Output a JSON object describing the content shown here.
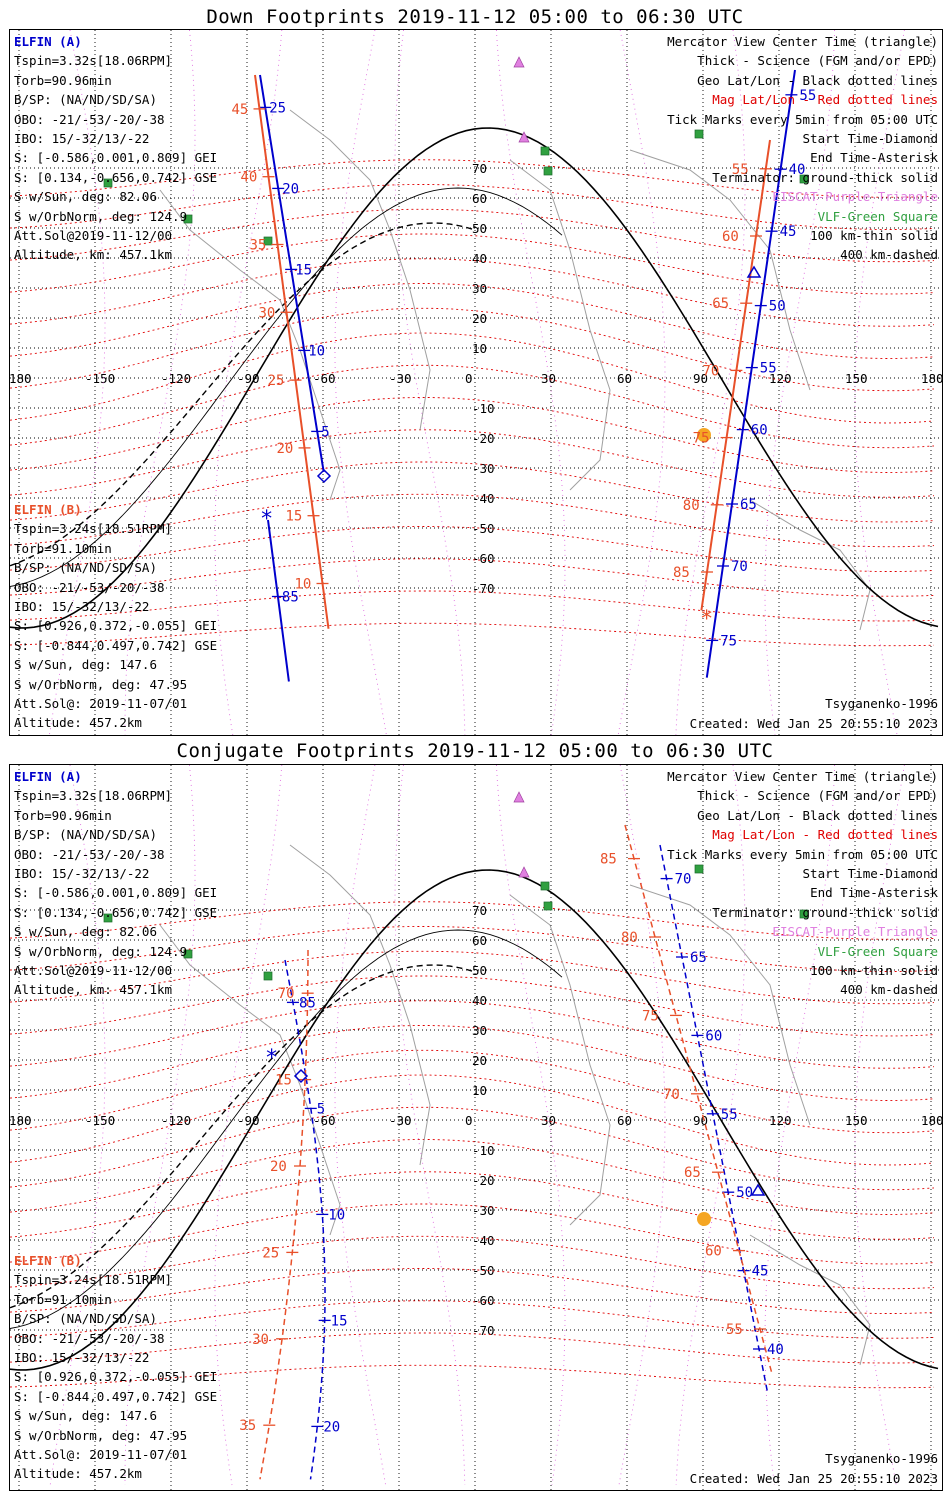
{
  "page": {
    "background": "#ffffff"
  },
  "colors": {
    "elfin_a": "#0000cc",
    "elfin_b": "#e8502a",
    "mag_grid": "#e00000",
    "geo_grid": "#000000",
    "eiscat": "#e080e0",
    "vlf": "#30a040",
    "terminator": "#000000",
    "coast": "#a0a0a0",
    "sun": "#f5a623"
  },
  "grid": {
    "lon_ticks": [
      "180",
      "-150",
      "-120",
      "-90",
      "-60",
      "-30",
      "0",
      "30",
      "60",
      "90",
      "120",
      "150",
      "180"
    ],
    "lat_ticks": [
      "-70",
      "-60",
      "-50",
      "-40",
      "-30",
      "-20",
      "-10",
      "0",
      "10",
      "20",
      "30",
      "40",
      "50",
      "60",
      "70"
    ]
  },
  "panels": [
    {
      "title": "Down Footprints 2019-11-12 05:00 to 06:30 UTC",
      "elfin_a": {
        "label": "ELFIN (A)",
        "lines": [
          "Tspin=3.32s[18.06RPM]",
          "Torb=90.96min",
          "B/SP: (NA/ND/SD/SA)",
          "OBO: -21/-53/-20/-38",
          "IBO: 15/-32/13/-22",
          "S: [-0.586,0.001,0.809] GEI",
          "S: [0.134,-0.656,0.742] GSE",
          "S w/Sun, deg: 82.06",
          "S w/OrbNorm, deg: 124.9",
          "Att.Sol@2019-11-12/00",
          "Altitude, km: 457.1km"
        ]
      },
      "elfin_b": {
        "label": "ELFIN (B)",
        "lines": [
          "Tspin=3.24s[18.51RPM]",
          "Torb=91.10min",
          "B/SP: (NA/ND/SD/SA)",
          "OBO: -21/-53/-20/-38",
          "IBO: 15/-32/13/-22",
          "S: [0.926,0.372,-0.055] GEI",
          "S: [-0.844,0.497,0.742] GSE",
          "S w/Sun, deg: 147.6",
          "S w/OrbNorm, deg: 47.95",
          "Att.Sol@: 2019-11-07/01",
          "Altitude: 457.2km"
        ]
      },
      "legend": [
        {
          "text": "Mercator View Center Time (triangle)",
          "color": "black"
        },
        {
          "text": "Thick - Science (FGM and/or EPD)",
          "color": "black"
        },
        {
          "text": "Geo Lat/Lon - Black dotted lines",
          "color": "black"
        },
        {
          "text": "Mag Lat/Lon - Red dotted lines",
          "color": "red"
        },
        {
          "text": "Tick Marks every 5min from 05:00 UTC",
          "color": "black"
        },
        {
          "text": "Start Time-Diamond",
          "color": "black"
        },
        {
          "text": "End Time-Asterisk",
          "color": "black"
        },
        {
          "text": "Terminator: ground-thick solid",
          "color": "black"
        },
        {
          "text": "EISCAT-Purple Triangle",
          "color": "violet"
        },
        {
          "text": "VLF-Green Square",
          "color": "green"
        },
        {
          "text": "100 km-thin solid",
          "color": "black"
        },
        {
          "text": "400 km-dashed",
          "color": "black"
        }
      ],
      "model": "Tsyganenko-1996",
      "created": "Created: Wed Jan 25 20:55:10 2023",
      "track_a_west_ticks": [
        "25",
        "20",
        "15",
        "10",
        "5"
      ],
      "track_a_west_lower_ticks": [
        "85"
      ],
      "track_b_west_ticks": [
        "45",
        "40",
        "35",
        "30",
        "25",
        "20",
        "15",
        "10"
      ],
      "track_a_east_ticks": [
        "55",
        "40",
        "45",
        "50",
        "55",
        "60",
        "65",
        "70",
        "75"
      ],
      "track_b_east_ticks": [
        "55",
        "60",
        "65",
        "70",
        "75",
        "80",
        "85"
      ]
    },
    {
      "title": "Conjugate Footprints 2019-11-12 05:00 to 06:30 UTC",
      "elfin_a": {
        "label": "ELFIN (A)",
        "lines": [
          "Tspin=3.32s[18.06RPM]",
          "Torb=90.96min",
          "B/SP: (NA/ND/SD/SA)",
          "OBO: -21/-53/-20/-38",
          "IBO: 15/-32/13/-22",
          "S: [-0.586,0.001,0.809] GEI",
          "S: [0.134,-0.656,0.742] GSE",
          "S w/Sun, deg: 82.06",
          "S w/OrbNorm, deg: 124.9",
          "Att.Sol@2019-11-12/00",
          "Altitude, km: 457.1km"
        ]
      },
      "elfin_b": {
        "label": "ELFIN (B)",
        "lines": [
          "Tspin=3.24s[18.51RPM]",
          "Torb=91.10min",
          "B/SP: (NA/ND/SD/SA)",
          "OBO: -21/-53/-20/-38",
          "IBO: 15/-32/13/-22",
          "S: [0.926,0.372,-0.055] GEI",
          "S: [-0.844,0.497,0.742] GSE",
          "S w/Sun, deg: 147.6",
          "S w/OrbNorm, deg: 47.95",
          "Att.Sol@: 2019-11-07/01",
          "Altitude: 457.2km"
        ]
      },
      "legend": [
        {
          "text": "Mercator View Center Time (triangle)",
          "color": "black"
        },
        {
          "text": "Thick - Science (FGM and/or EPD)",
          "color": "black"
        },
        {
          "text": "Geo Lat/Lon - Black dotted lines",
          "color": "black"
        },
        {
          "text": "Mag Lat/Lon - Red dotted lines",
          "color": "red"
        },
        {
          "text": "Tick Marks every 5min from 05:00 UTC",
          "color": "black"
        },
        {
          "text": "Start Time-Diamond",
          "color": "black"
        },
        {
          "text": "End Time-Asterisk",
          "color": "black"
        },
        {
          "text": "Terminator: ground-thick solid",
          "color": "black"
        },
        {
          "text": "EISCAT-Purple Triangle",
          "color": "violet"
        },
        {
          "text": "VLF-Green Square",
          "color": "green"
        },
        {
          "text": "100 km-thin solid",
          "color": "black"
        },
        {
          "text": "400 km-dashed",
          "color": "black"
        }
      ],
      "model": "Tsyganenko-1996",
      "created": "Created: Wed Jan 25 20:55:10 2023",
      "track_a_west_ticks": [
        "85",
        "5",
        "10",
        "15",
        "20"
      ],
      "track_b_west_ticks": [
        "70",
        "15",
        "20",
        "25",
        "30",
        "35"
      ],
      "track_a_east_ticks": [
        "70",
        "65",
        "60",
        "55",
        "50",
        "45",
        "40"
      ],
      "track_b_east_ticks": [
        "85",
        "80",
        "75",
        "70",
        "65",
        "60",
        "55"
      ]
    }
  ]
}
